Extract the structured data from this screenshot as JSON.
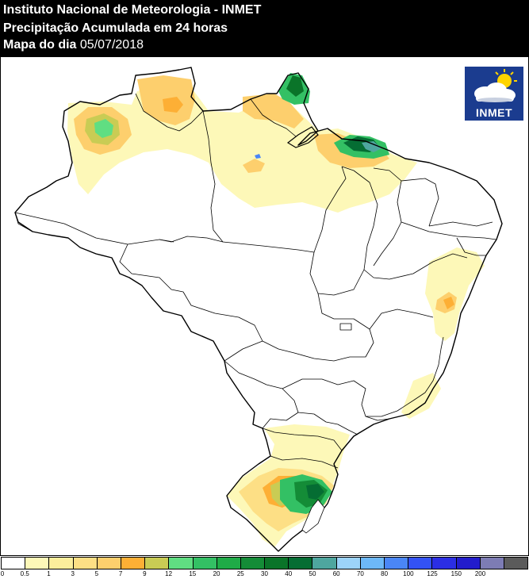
{
  "header": {
    "institute": "Instituto Nacional de Meteorologia - INMET",
    "product": "Precipitação Acumulada em 24 horas",
    "day_label": "Mapa do dia",
    "date": "05/07/2018"
  },
  "logo": {
    "text": "INMET",
    "icon": "sun-cloud-icon"
  },
  "legend": {
    "colors": [
      "#ffffff",
      "#fdf8b8",
      "#fcee9c",
      "#fddf85",
      "#fdcf6d",
      "#fdaf35",
      "#c9cc54",
      "#60de82",
      "#33c064",
      "#1fab47",
      "#148c37",
      "#0a7429",
      "#056d33",
      "#4ea69f",
      "#9cd3f9",
      "#6db8f8",
      "#4a86f6",
      "#3352f4",
      "#2b2ee4",
      "#221ccc",
      "#7d7cb4",
      "#5b5b5b"
    ],
    "ticks": [
      "0",
      "0.5",
      "1",
      "3",
      "5",
      "7",
      "9",
      "12",
      "15",
      "20",
      "25",
      "30",
      "40",
      "50",
      "60",
      "70",
      "80",
      "100",
      "125",
      "150",
      "200"
    ]
  }
}
